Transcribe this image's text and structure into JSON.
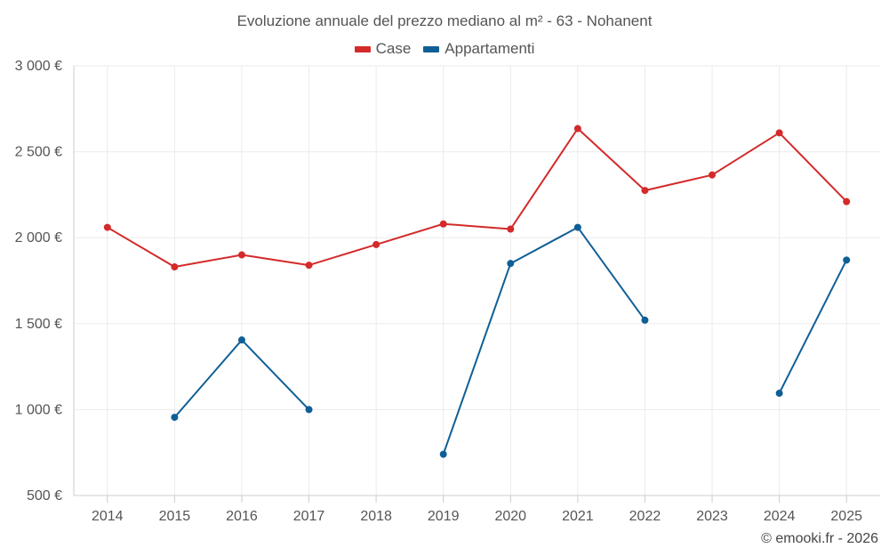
{
  "chart_data": {
    "type": "line",
    "title": "Evoluzione annuale del prezzo mediano al m² - 63 - Nohanent",
    "categories": [
      "2014",
      "2015",
      "2016",
      "2017",
      "2018",
      "2019",
      "2020",
      "2021",
      "2022",
      "2023",
      "2024",
      "2025"
    ],
    "series": [
      {
        "name": "Case",
        "color": "#d42a2a",
        "values": [
          2060,
          1830,
          1900,
          1840,
          1960,
          2080,
          2050,
          2635,
          2275,
          2365,
          2610,
          2210
        ]
      },
      {
        "name": "Appartamenti",
        "color": "#0f5f96",
        "values": [
          null,
          955,
          1405,
          1000,
          null,
          740,
          1850,
          2060,
          1520,
          null,
          1095,
          1870
        ]
      }
    ],
    "yticks": [
      "3 000 €",
      "2 500 €",
      "2 000 €",
      "1 500 €",
      "1 000 €",
      "500 €"
    ],
    "ytick_values": [
      3000,
      2500,
      2000,
      1500,
      1000,
      500
    ],
    "ylim": [
      500,
      3000
    ],
    "grid": true,
    "legend_position": "top-center",
    "xlabel": "",
    "ylabel": ""
  },
  "credit": "© emooki.fr - 2026"
}
